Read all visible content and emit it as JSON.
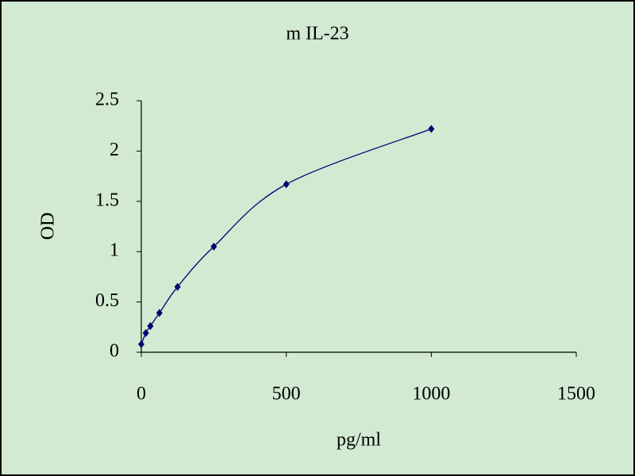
{
  "chart_data": {
    "type": "scatter",
    "title": "m IL-23",
    "xlabel": "pg/ml",
    "ylabel": "OD",
    "x": [
      0,
      15.6,
      31.25,
      62.5,
      125,
      250,
      500,
      1000
    ],
    "series": [
      {
        "name": "OD",
        "color": "#00006e",
        "values": [
          0.08,
          0.19,
          0.26,
          0.39,
          0.65,
          1.05,
          1.67,
          2.22
        ]
      }
    ],
    "xlim": [
      0,
      1500
    ],
    "xticks": [
      0,
      500,
      1000,
      1500
    ],
    "ylim": [
      0,
      2.5
    ],
    "yticks": [
      0,
      0.5,
      1,
      1.5,
      2,
      2.5
    ],
    "smooth_line": true,
    "background": "#d2ead2"
  }
}
